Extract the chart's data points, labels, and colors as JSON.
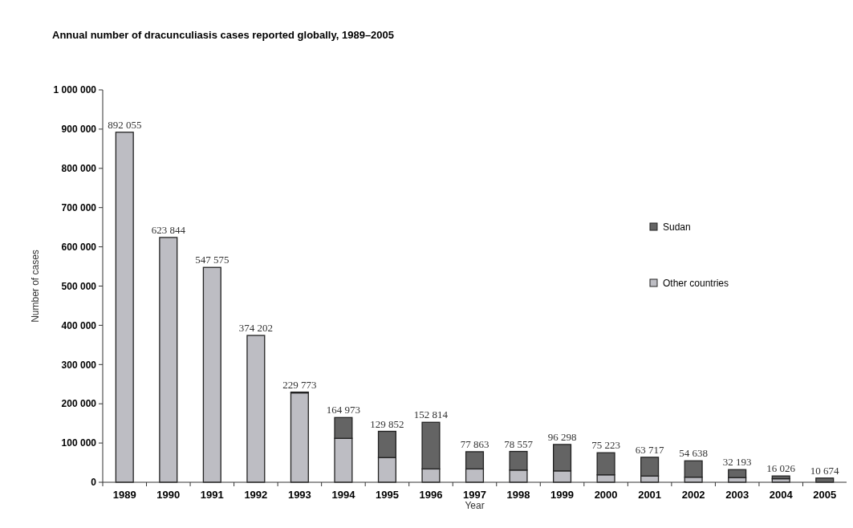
{
  "chart_data": {
    "type": "bar",
    "stacked": true,
    "title": "Annual number of dracunculiasis cases reported globally, 1989–2005",
    "xlabel": "Year",
    "ylabel": "Number of cases",
    "categories": [
      "1989",
      "1990",
      "1991",
      "1992",
      "1993",
      "1994",
      "1995",
      "1996",
      "1997",
      "1998",
      "1999",
      "2000",
      "2001",
      "2002",
      "2003",
      "2004",
      "2005"
    ],
    "series": [
      {
        "name": "Other countries",
        "color": "#bdbdc3",
        "values": [
          892055,
          623844,
          547575,
          374202,
          227773,
          112000,
          63000,
          34000,
          34000,
          31000,
          29000,
          19000,
          16000,
          13000,
          12000,
          9000,
          null
        ]
      },
      {
        "name": "Sudan",
        "color": "#646464",
        "values": [
          0,
          0,
          0,
          0,
          2000,
          52973,
          66852,
          118814,
          43863,
          47557,
          67298,
          56223,
          47717,
          41638,
          20193,
          7026,
          10674
        ]
      }
    ],
    "totals": [
      "892 055",
      "623 844",
      "547 575",
      "374 202",
      "229 773",
      "164 973",
      "129 852",
      "152 814",
      "77 863",
      "78 557",
      "96 298",
      "75 223",
      "63 717",
      "54 638",
      "32 193",
      "16 026",
      "10 674"
    ],
    "ylim": [
      0,
      1000000
    ],
    "yticks": [
      0,
      {
        "value": 100000,
        "label": "100 000"
      },
      {
        "value": 200000,
        "label": "200 000"
      },
      {
        "value": 300000,
        "label": "300 000"
      },
      {
        "value": 400000,
        "label": "400 000"
      },
      {
        "value": 500000,
        "label": "500 000"
      },
      {
        "value": 600000,
        "label": "600 000"
      },
      {
        "value": 700000,
        "label": "700 000"
      },
      {
        "value": 800000,
        "label": "800 000"
      },
      {
        "value": 900000,
        "label": "900 000"
      },
      {
        "value": 1000000,
        "label": "1 000 000"
      }
    ],
    "legend": "right",
    "grid": false
  }
}
